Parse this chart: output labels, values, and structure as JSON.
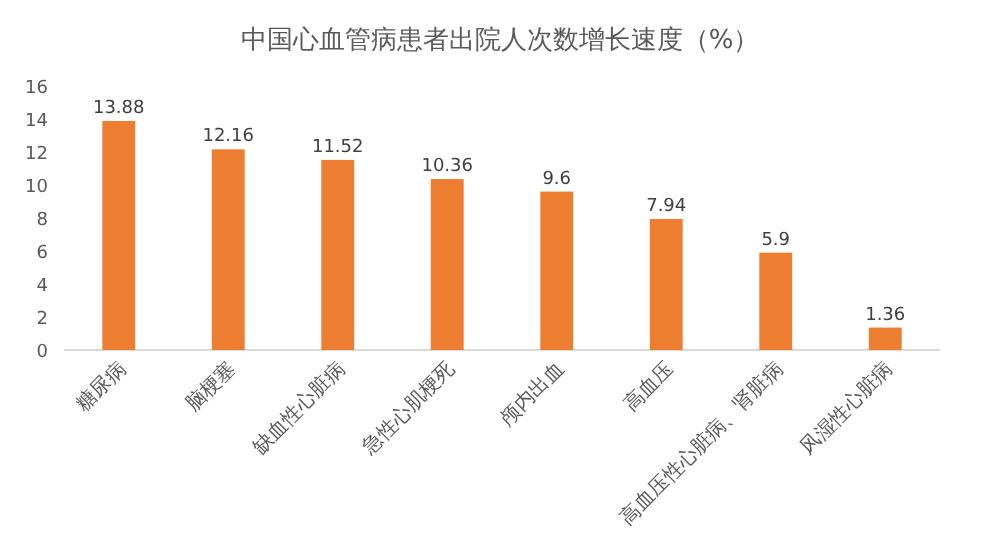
{
  "chart_data": {
    "type": "bar",
    "title": "中国心血管病患者出院人次数增长速度（%）",
    "categories": [
      "糖尿病",
      "脑梗塞",
      "缺血性心脏病",
      "急性心肌梗死",
      "颅内出血",
      "高血压",
      "高血压性心脏病、肾脏病",
      "风湿性心脏病"
    ],
    "values": [
      13.88,
      12.16,
      11.52,
      10.36,
      9.6,
      7.94,
      5.9,
      1.36
    ],
    "color": "#ed7d31",
    "data_labels": true,
    "ylim": [
      0,
      16
    ],
    "yticks": [
      0,
      2,
      4,
      6,
      8,
      10,
      12,
      14,
      16
    ]
  }
}
